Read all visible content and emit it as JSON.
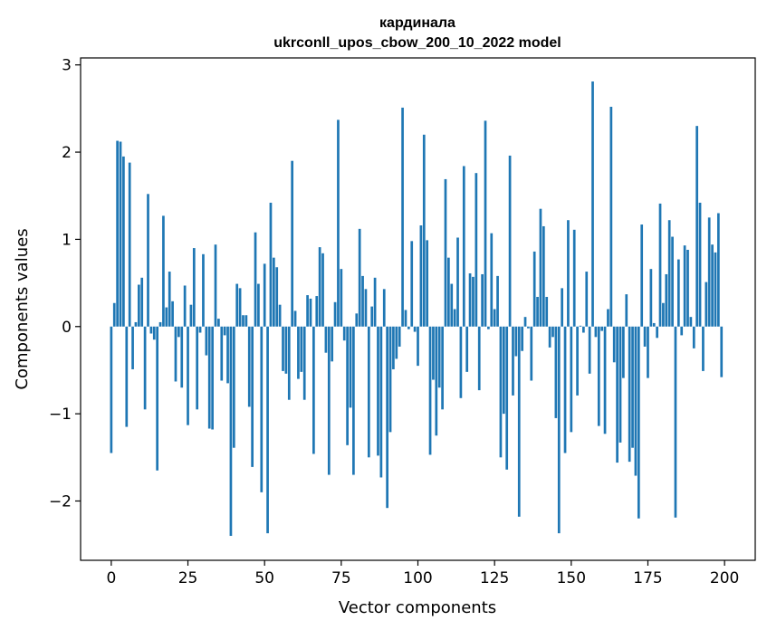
{
  "chart_data": {
    "type": "bar",
    "title": "кардинала",
    "subtitle": "ukrconll_upos_cbow_200_10_2022 model",
    "xlabel": "Vector components",
    "ylabel": "Components values",
    "xlim": [
      -10,
      210
    ],
    "ylim": [
      -2.68,
      3.08
    ],
    "xticks": [
      0,
      25,
      50,
      75,
      100,
      125,
      150,
      175,
      200
    ],
    "yticks": [
      -2,
      -1,
      0,
      1,
      2,
      3
    ],
    "xtick_labels": [
      "0",
      "25",
      "50",
      "75",
      "100",
      "125",
      "150",
      "175",
      "200"
    ],
    "ytick_labels": [
      "−2",
      "−1",
      "0",
      "1",
      "2",
      "3"
    ],
    "grid": false,
    "bar_color": "#1f77b4",
    "x": [
      0,
      1,
      2,
      3,
      4,
      5,
      6,
      7,
      8,
      9,
      10,
      11,
      12,
      13,
      14,
      15,
      16,
      17,
      18,
      19,
      20,
      21,
      22,
      23,
      24,
      25,
      26,
      27,
      28,
      29,
      30,
      31,
      32,
      33,
      34,
      35,
      36,
      37,
      38,
      39,
      40,
      41,
      42,
      43,
      44,
      45,
      46,
      47,
      48,
      49,
      50,
      51,
      52,
      53,
      54,
      55,
      56,
      57,
      58,
      59,
      60,
      61,
      62,
      63,
      64,
      65,
      66,
      67,
      68,
      69,
      70,
      71,
      72,
      73,
      74,
      75,
      76,
      77,
      78,
      79,
      80,
      81,
      82,
      83,
      84,
      85,
      86,
      87,
      88,
      89,
      90,
      91,
      92,
      93,
      94,
      95,
      96,
      97,
      98,
      99,
      100,
      101,
      102,
      103,
      104,
      105,
      106,
      107,
      108,
      109,
      110,
      111,
      112,
      113,
      114,
      115,
      116,
      117,
      118,
      119,
      120,
      121,
      122,
      123,
      124,
      125,
      126,
      127,
      128,
      129,
      130,
      131,
      132,
      133,
      134,
      135,
      136,
      137,
      138,
      139,
      140,
      141,
      142,
      143,
      144,
      145,
      146,
      147,
      148,
      149,
      150,
      151,
      152,
      153,
      154,
      155,
      156,
      157,
      158,
      159,
      160,
      161,
      162,
      163,
      164,
      165,
      166,
      167,
      168,
      169,
      170,
      171,
      172,
      173,
      174,
      175,
      176,
      177,
      178,
      179,
      180,
      181,
      182,
      183,
      184,
      185,
      186,
      187,
      188,
      189,
      190,
      191,
      192,
      193,
      194,
      195,
      196,
      197,
      198,
      199
    ],
    "values": [
      -1.45,
      0.27,
      2.13,
      2.12,
      1.95,
      -1.15,
      1.88,
      -0.49,
      0.05,
      0.48,
      0.56,
      -0.95,
      1.52,
      -0.08,
      -0.15,
      -1.65,
      0.05,
      1.27,
      0.22,
      0.63,
      0.29,
      -0.63,
      -0.12,
      -0.7,
      0.47,
      -1.13,
      0.25,
      0.9,
      -0.95,
      -0.07,
      0.83,
      -0.33,
      -1.17,
      -1.18,
      0.94,
      0.09,
      -0.62,
      -0.1,
      -0.65,
      -2.4,
      -1.39,
      0.49,
      0.44,
      0.13,
      0.13,
      -0.92,
      -1.61,
      1.08,
      0.49,
      -1.9,
      0.72,
      -2.37,
      1.42,
      0.79,
      0.68,
      0.25,
      -0.51,
      -0.54,
      -0.84,
      1.9,
      0.18,
      -0.6,
      -0.52,
      -0.84,
      0.36,
      0.32,
      -1.46,
      0.35,
      0.91,
      0.84,
      -0.3,
      -1.7,
      -0.4,
      0.28,
      2.37,
      0.66,
      -0.16,
      -1.36,
      -0.93,
      -1.7,
      0.15,
      1.12,
      0.58,
      0.43,
      -1.5,
      0.23,
      0.56,
      -1.48,
      -1.73,
      0.43,
      -2.08,
      -1.21,
      -0.49,
      -0.37,
      -0.23,
      2.51,
      0.19,
      -0.03,
      0.98,
      -0.06,
      -0.45,
      1.16,
      2.2,
      0.99,
      -1.47,
      -0.61,
      -1.25,
      -0.7,
      -0.95,
      1.69,
      0.79,
      0.49,
      0.2,
      1.02,
      -0.82,
      1.84,
      -0.52,
      0.61,
      0.57,
      1.76,
      -0.73,
      0.6,
      2.36,
      -0.03,
      1.07,
      0.2,
      0.58,
      -1.5,
      -1.0,
      -1.64,
      1.96,
      -0.79,
      -0.34,
      -2.18,
      -0.28,
      0.11,
      -0.02,
      -0.62,
      0.86,
      0.34,
      1.35,
      1.15,
      0.34,
      -0.24,
      -0.12,
      -1.05,
      -2.37,
      0.44,
      -1.45,
      1.22,
      -1.21,
      1.11,
      -0.79,
      0.01,
      -0.07,
      0.63,
      -0.54,
      2.81,
      -0.12,
      -1.14,
      -0.05,
      -1.23,
      0.2,
      2.52,
      -0.41,
      -1.56,
      -1.33,
      -0.59,
      0.37,
      -1.55,
      -1.39,
      -1.71,
      -2.2,
      1.17,
      -0.23,
      -0.59,
      0.66,
      0.04,
      -0.13,
      1.41,
      0.27,
      0.6,
      1.22,
      1.03,
      -2.19,
      0.77,
      -0.1,
      0.93,
      0.88,
      0.11,
      -0.25,
      2.3,
      1.42,
      -0.51,
      0.51,
      1.25,
      0.94,
      0.85,
      1.3,
      -0.58
    ]
  }
}
